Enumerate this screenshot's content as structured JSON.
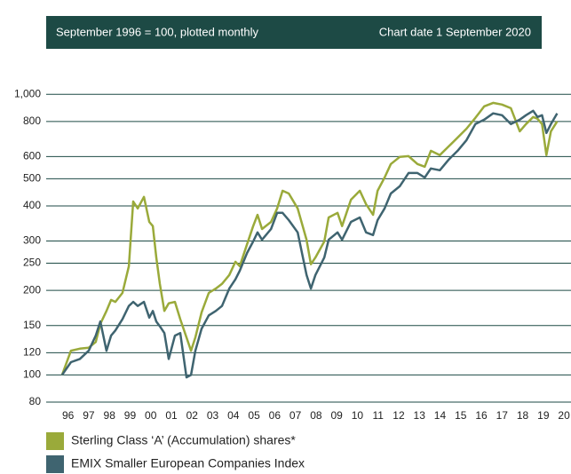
{
  "chart_data": {
    "type": "line",
    "subtitle": "September 1996 = 100, plotted monthly",
    "note": "Chart date 1 September 2020",
    "log_y": true,
    "grid": true,
    "x": [
      1996.67,
      1997.1,
      1997.53,
      1997.96,
      1998.3,
      1998.52,
      1998.82,
      1999.04,
      1999.25,
      1999.59,
      1999.9,
      2000.11,
      2000.33,
      2000.63,
      2000.89,
      2001.06,
      2001.23,
      2001.4,
      2001.62,
      2001.83,
      2002.13,
      2002.39,
      2002.69,
      2002.91,
      2003.12,
      2003.42,
      2003.77,
      2004.11,
      2004.41,
      2004.76,
      2005.06,
      2005.27,
      2005.62,
      2005.92,
      2006.13,
      2006.35,
      2006.78,
      2007.08,
      2007.34,
      2007.64,
      2008.07,
      2008.5,
      2008.71,
      2008.93,
      2009.36,
      2009.57,
      2010.0,
      2010.22,
      2010.65,
      2011.08,
      2011.38,
      2011.72,
      2011.94,
      2012.28,
      2012.58,
      2013.01,
      2013.44,
      2013.87,
      2014.22,
      2014.52,
      2014.95,
      2015.38,
      2015.81,
      2016.24,
      2016.67,
      2017.1,
      2017.53,
      2017.96,
      2018.39,
      2018.82,
      2019.12,
      2019.47,
      2019.68,
      2019.9,
      2020.11,
      2020.33,
      2020.63
    ],
    "series": [
      {
        "name": "Sterling Class ‘A’ (Accumulation) shares*",
        "color": "#9aaa3a",
        "values": [
          100,
          122,
          124,
          125,
          131,
          152,
          169,
          185,
          182,
          196,
          244,
          415,
          392,
          431,
          351,
          339,
          262,
          211,
          169,
          180,
          182,
          158,
          136,
          122,
          136,
          167,
          196,
          203,
          211,
          227,
          253,
          244,
          292,
          339,
          372,
          331,
          351,
          392,
          453,
          443,
          392,
          303,
          248,
          262,
          299,
          364,
          378,
          339,
          421,
          453,
          406,
          372,
          453,
          505,
          564,
          598,
          602,
          564,
          552,
          629,
          607,
          652,
          701,
          754,
          824,
          906,
          932,
          919,
          892,
          738,
          783,
          830,
          818,
          783,
          607,
          738,
          800
        ]
      },
      {
        "name": "EMIX Smaller European Companies Index",
        "color": "#3f6470",
        "values": [
          100,
          111,
          114,
          122,
          138,
          155,
          122,
          138,
          144,
          158,
          176,
          182,
          176,
          182,
          160,
          169,
          155,
          149,
          141,
          114,
          138,
          141,
          98,
          100,
          122,
          146,
          163,
          169,
          176,
          203,
          219,
          235,
          272,
          299,
          322,
          303,
          331,
          378,
          378,
          356,
          322,
          227,
          203,
          227,
          262,
          303,
          322,
          303,
          351,
          364,
          322,
          315,
          356,
          392,
          443,
          470,
          524,
          524,
          505,
          544,
          536,
          585,
          629,
          686,
          783,
          812,
          855,
          842,
          783,
          812,
          842,
          873,
          830,
          842,
          728,
          783,
          855
        ]
      }
    ],
    "xlim": [
      1995.9,
      2021.3
    ],
    "xticks": [
      {
        "value": 1996.96,
        "label": "96"
      },
      {
        "value": 1997.96,
        "label": "97"
      },
      {
        "value": 1998.96,
        "label": "98"
      },
      {
        "value": 1999.96,
        "label": "99"
      },
      {
        "value": 2000.96,
        "label": "00"
      },
      {
        "value": 2001.96,
        "label": "01"
      },
      {
        "value": 2002.96,
        "label": "02"
      },
      {
        "value": 2003.96,
        "label": "03"
      },
      {
        "value": 2004.96,
        "label": "04"
      },
      {
        "value": 2005.96,
        "label": "05"
      },
      {
        "value": 2006.96,
        "label": "06"
      },
      {
        "value": 2007.96,
        "label": "07"
      },
      {
        "value": 2008.96,
        "label": "08"
      },
      {
        "value": 2009.96,
        "label": "09"
      },
      {
        "value": 2010.96,
        "label": "10"
      },
      {
        "value": 2011.96,
        "label": "11"
      },
      {
        "value": 2012.96,
        "label": "12"
      },
      {
        "value": 2013.96,
        "label": "13"
      },
      {
        "value": 2014.96,
        "label": "14"
      },
      {
        "value": 2015.96,
        "label": "15"
      },
      {
        "value": 2016.96,
        "label": "16"
      },
      {
        "value": 2017.96,
        "label": "17"
      },
      {
        "value": 2018.96,
        "label": "18"
      },
      {
        "value": 2019.96,
        "label": "19"
      },
      {
        "value": 2020.96,
        "label": "20"
      }
    ],
    "ylim": [
      80,
      1400
    ],
    "yticks": [
      80,
      100,
      120,
      150,
      200,
      250,
      300,
      400,
      500,
      600,
      800,
      {
        "value": 1000,
        "label": "1,000"
      }
    ]
  }
}
